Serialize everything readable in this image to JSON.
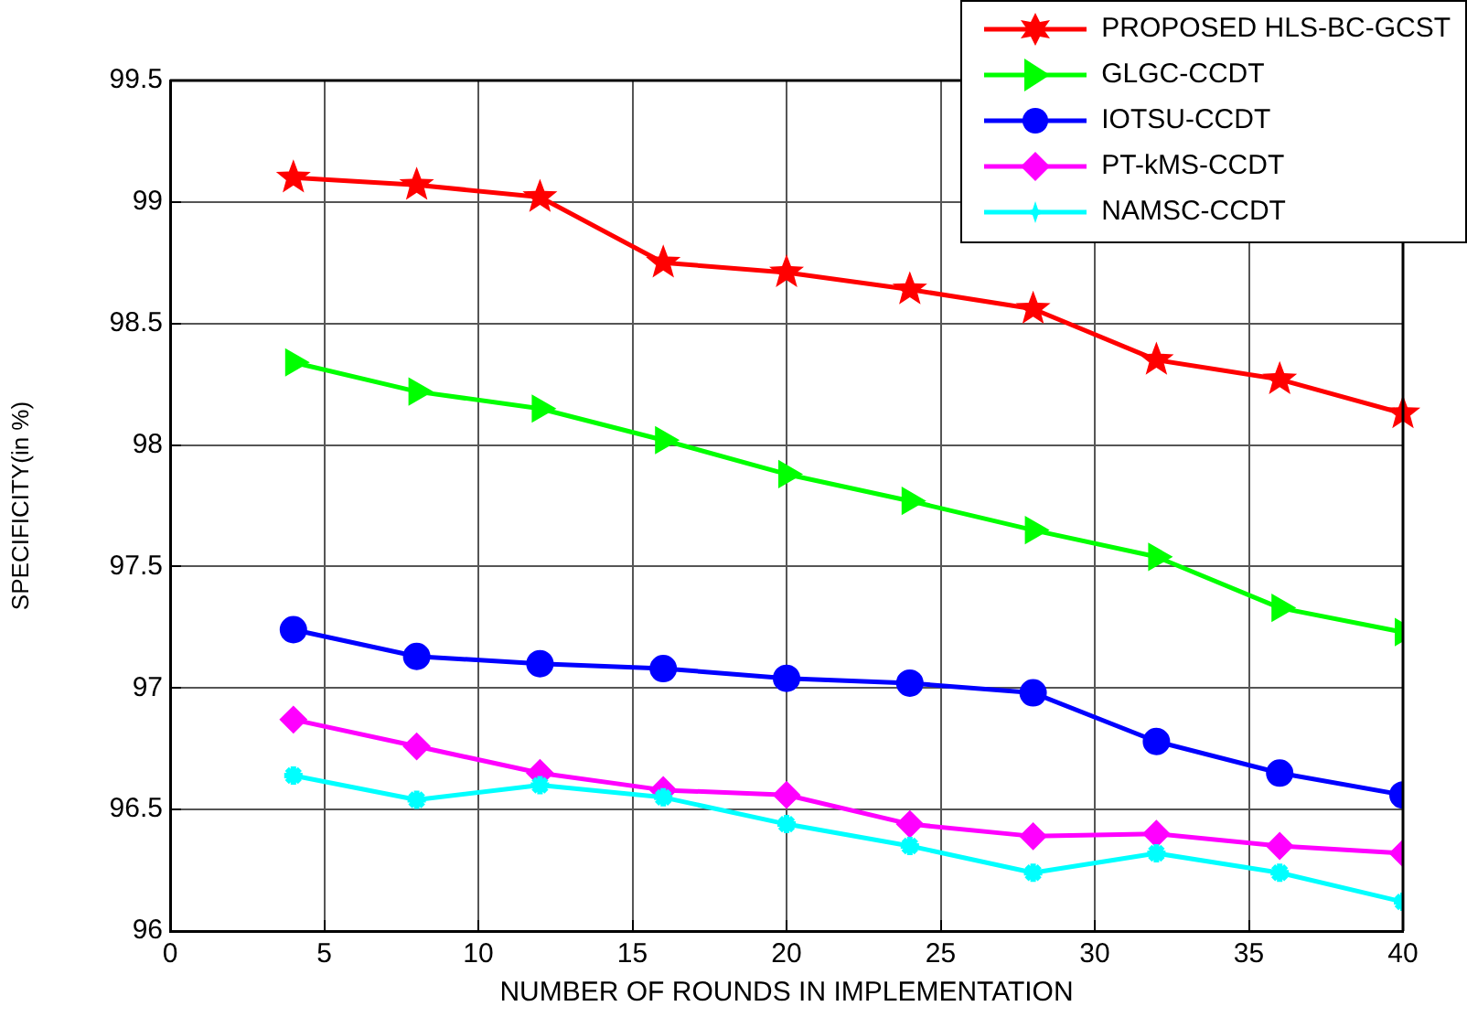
{
  "chart_data": {
    "type": "line",
    "xlabel": "NUMBER OF ROUNDS IN IMPLEMENTATION",
    "ylabel": "SPECIFICITY(in %)",
    "x": [
      4,
      8,
      12,
      16,
      20,
      24,
      28,
      32,
      36,
      40
    ],
    "xlim": [
      0,
      40
    ],
    "xticks": [
      0,
      5,
      10,
      15,
      20,
      25,
      30,
      35,
      40
    ],
    "ylim": [
      96,
      99.5
    ],
    "yticks": [
      96,
      96.5,
      97,
      97.5,
      98,
      98.5,
      99,
      99.5
    ],
    "grid": true,
    "legend": "top right",
    "line_style": "solid",
    "series": [
      {
        "name": "PROPOSED HLS-BC-GCST",
        "color": "#ff0000",
        "marker": "star",
        "values": [
          99.1,
          99.07,
          99.02,
          98.75,
          98.71,
          98.64,
          98.56,
          98.35,
          98.27,
          98.13
        ]
      },
      {
        "name": "GLGC-CCDT",
        "color": "#00ff00",
        "marker": "triangle",
        "values": [
          98.34,
          98.22,
          98.15,
          98.02,
          97.88,
          97.77,
          97.65,
          97.54,
          97.33,
          97.23
        ]
      },
      {
        "name": "IOTSU-CCDT",
        "color": "#0000ff",
        "marker": "circle",
        "values": [
          97.24,
          97.13,
          97.1,
          97.08,
          97.04,
          97.02,
          96.98,
          96.78,
          96.65,
          96.56
        ]
      },
      {
        "name": "PT-kMS-CCDT",
        "color": "#ff00ff",
        "marker": "diamond",
        "values": [
          96.87,
          96.76,
          96.65,
          96.58,
          96.56,
          96.44,
          96.39,
          96.4,
          96.35,
          96.32
        ]
      },
      {
        "name": "NAMSC-CCDT",
        "color": "#00ffff",
        "marker": "cross",
        "values": [
          96.64,
          96.54,
          96.6,
          96.55,
          96.44,
          96.35,
          96.24,
          96.32,
          96.24,
          96.12
        ]
      }
    ]
  }
}
